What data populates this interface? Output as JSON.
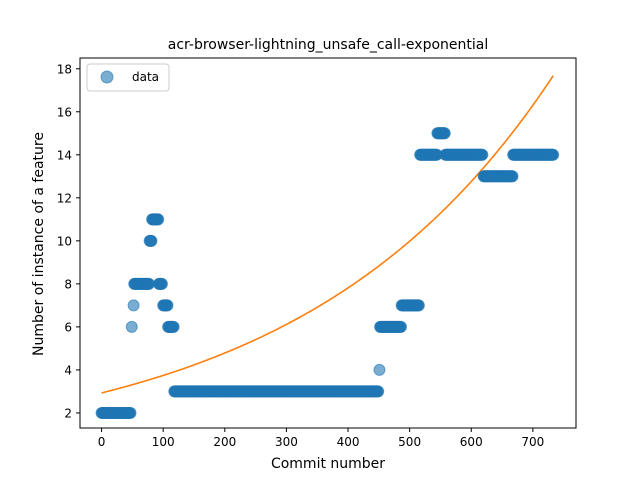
{
  "chart_data": {
    "type": "scatter",
    "title": "acr-browser-lightning_unsafe_call-exponential",
    "xlabel": "Commit number",
    "ylabel": "Number of instance of a feature",
    "xlim": [
      -35,
      770
    ],
    "ylim": [
      1.3,
      18.5
    ],
    "xticks": [
      0,
      100,
      200,
      300,
      400,
      500,
      600,
      700
    ],
    "yticks": [
      2,
      4,
      6,
      8,
      10,
      12,
      14,
      16,
      18
    ],
    "grid": false,
    "legend": {
      "position": "top-left",
      "entries": [
        "data"
      ]
    },
    "colors": {
      "data": "#1f77b4",
      "fit": "#ff7f0e"
    },
    "series": [
      {
        "name": "data",
        "kind": "points",
        "runs": [
          {
            "x_start": 0,
            "x_end": 47,
            "y": 2
          },
          {
            "x": 49,
            "y": 6
          },
          {
            "x": 52,
            "y": 7
          },
          {
            "x_start": 53,
            "x_end": 77,
            "y": 8
          },
          {
            "x_start": 78,
            "x_end": 81,
            "y": 10
          },
          {
            "x_start": 82,
            "x_end": 92,
            "y": 11
          },
          {
            "x_start": 93,
            "x_end": 98,
            "y": 8
          },
          {
            "x_start": 100,
            "x_end": 107,
            "y": 7
          },
          {
            "x_start": 108,
            "x_end": 117,
            "y": 6
          },
          {
            "x_start": 118,
            "x_end": 449,
            "y": 3
          },
          {
            "x": 451,
            "y": 4
          },
          {
            "x_start": 452,
            "x_end": 486,
            "y": 6
          },
          {
            "x_start": 487,
            "x_end": 515,
            "y": 7
          },
          {
            "x_start": 517,
            "x_end": 544,
            "y": 14
          },
          {
            "x_start": 545,
            "x_end": 557,
            "y": 15
          },
          {
            "x_start": 558,
            "x_end": 618,
            "y": 14
          },
          {
            "x_start": 620,
            "x_end": 667,
            "y": 13
          },
          {
            "x_start": 668,
            "x_end": 733,
            "y": 14
          }
        ]
      },
      {
        "name": "",
        "kind": "exponential-fit",
        "model": {
          "a": 2.93,
          "b": 0.002452
        },
        "x_range": [
          0,
          733
        ]
      }
    ]
  }
}
